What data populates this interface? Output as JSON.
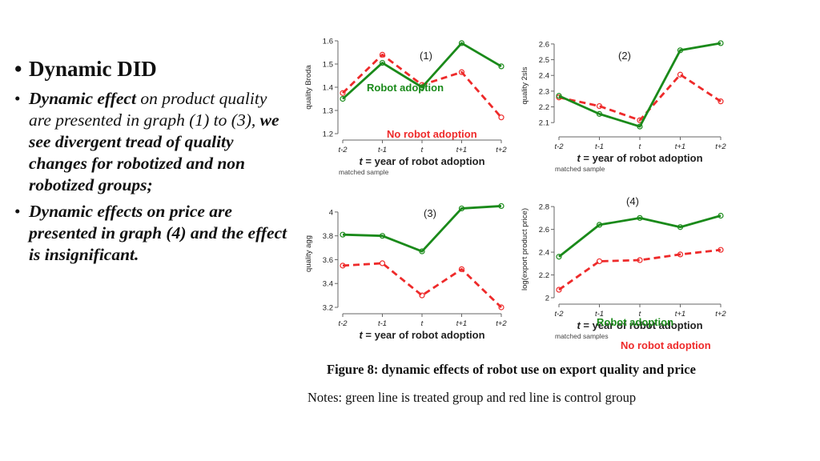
{
  "bullets": {
    "heading": "Dynamic DID",
    "item1_a": "Dynamic effect",
    "item1_b": " on product quality are presented in graph (1) to (3), ",
    "item1_c": "we see divergent tread of quality changes for robotized and non robotized groups;",
    "item2": "Dynamic effects on price are presented in graph (4) and the effect is insignificant."
  },
  "figure": {
    "caption": "Figure 8: dynamic effects of robot use on export quality and price",
    "notes": "Notes: green line is treated group and red line is control group"
  },
  "colors": {
    "treated": "#1a8a1a",
    "control": "#ee2a2a",
    "axis": "#666666",
    "text": "#222222"
  },
  "chart_data": [
    {
      "type": "line",
      "panel": "(1)",
      "categories": [
        "t-2",
        "t-1",
        "t",
        "t+1",
        "t+2"
      ],
      "xlabel_prefix": "t",
      "xlabel": " = year of robot adoption",
      "ylabel": "quality Broda",
      "ylim": [
        1.2,
        1.6
      ],
      "yticks": [
        1.2,
        1.3,
        1.4,
        1.5,
        1.6
      ],
      "note": "matched sample",
      "series": [
        {
          "name": "Robot adoption",
          "style": "solid",
          "values": [
            1.35,
            1.505,
            1.4,
            1.59,
            1.49
          ]
        },
        {
          "name": "No robot adoption",
          "style": "dashed",
          "values": [
            1.375,
            1.54,
            1.41,
            1.465,
            1.27
          ]
        }
      ]
    },
    {
      "type": "line",
      "panel": "(2)",
      "categories": [
        "t-2",
        "t-1",
        "t",
        "t+1",
        "t+2"
      ],
      "xlabel_prefix": "t",
      "xlabel": " = year of robot adoption",
      "ylabel": "quality 2sls",
      "ylim": [
        2.05,
        2.62
      ],
      "yticks": [
        2.1,
        2.2,
        2.3,
        2.4,
        2.5,
        2.6
      ],
      "note": "matched sample",
      "series": [
        {
          "name": "",
          "style": "solid",
          "values": [
            2.27,
            2.155,
            2.075,
            2.56,
            2.605
          ]
        },
        {
          "name": "",
          "style": "dashed",
          "values": [
            2.26,
            2.205,
            2.115,
            2.405,
            2.235
          ]
        }
      ]
    },
    {
      "type": "line",
      "panel": "(3)",
      "categories": [
        "t-2",
        "t-1",
        "t",
        "t+1",
        "t+2"
      ],
      "xlabel_prefix": "t",
      "xlabel": " = year of robot adoption",
      "ylabel": "quality agg",
      "ylim": [
        3.2,
        4.1
      ],
      "yticks": [
        3.2,
        3.4,
        3.6,
        3.8,
        4
      ],
      "note": "",
      "series": [
        {
          "name": "",
          "style": "solid",
          "values": [
            3.81,
            3.8,
            3.67,
            4.03,
            4.05
          ]
        },
        {
          "name": "",
          "style": "dashed",
          "values": [
            3.55,
            3.57,
            3.3,
            3.52,
            3.2
          ]
        }
      ]
    },
    {
      "type": "line",
      "panel": "(4)",
      "categories": [
        "t-2",
        "t-1",
        "t",
        "t+1",
        "t+2"
      ],
      "xlabel_prefix": "t",
      "xlabel": " = year of robot adoption",
      "ylabel": "log(export product price)",
      "ylim": [
        2.0,
        2.85
      ],
      "yticks": [
        2,
        2.2,
        2.4,
        2.6,
        2.8
      ],
      "note": "matched samples",
      "series": [
        {
          "name": "Robot adoption",
          "style": "solid",
          "values": [
            2.36,
            2.64,
            2.7,
            2.62,
            2.72
          ]
        },
        {
          "name": "No robot adoption",
          "style": "dashed",
          "values": [
            2.07,
            2.32,
            2.33,
            2.38,
            2.42
          ]
        }
      ]
    }
  ]
}
